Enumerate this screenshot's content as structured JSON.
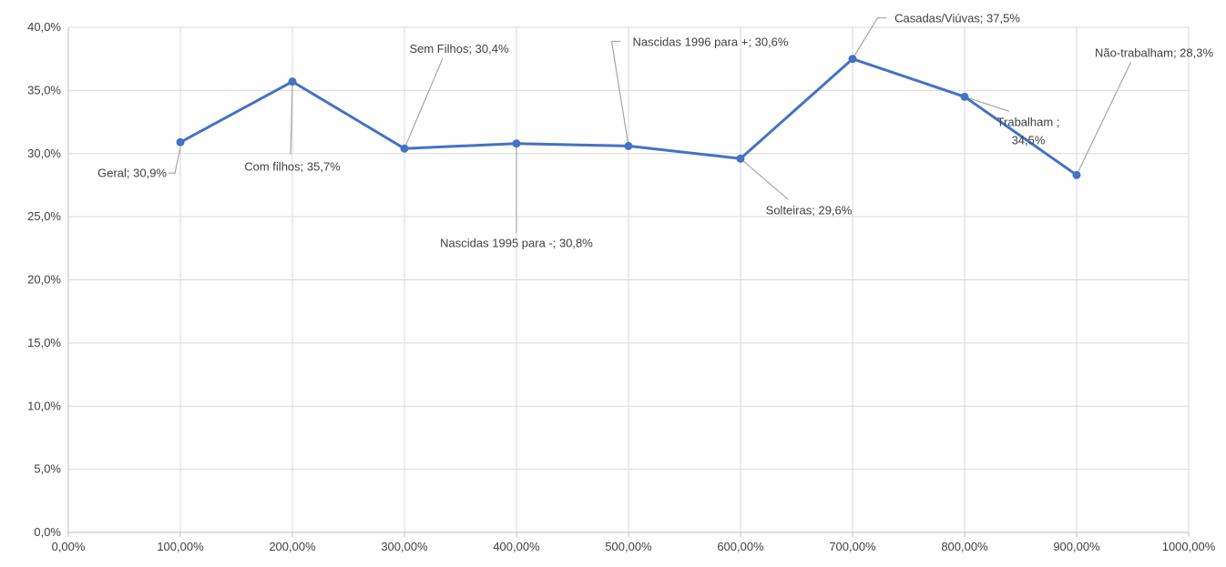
{
  "chart_data": {
    "type": "scatter",
    "title": "",
    "xlabel": "",
    "ylabel": "",
    "xlim": [
      0,
      10
    ],
    "ylim": [
      0,
      0.4
    ],
    "x_ticks": [
      0,
      1,
      2,
      3,
      4,
      5,
      6,
      7,
      8,
      9,
      10
    ],
    "x_tick_labels": [
      "0,00%",
      "100,00%",
      "200,00%",
      "300,00%",
      "400,00%",
      "500,00%",
      "600,00%",
      "700,00%",
      "800,00%",
      "900,00%",
      "1000,00%"
    ],
    "y_ticks": [
      0,
      0.05,
      0.1,
      0.15,
      0.2,
      0.25,
      0.3,
      0.35,
      0.4
    ],
    "y_tick_labels": [
      "0,0%",
      "5,0%",
      "10,0%",
      "15,0%",
      "20,0%",
      "25,0%",
      "30,0%",
      "35,0%",
      "40,0%"
    ],
    "grid": true,
    "legend": "none",
    "line_color": "#4472C4",
    "series": [
      {
        "x": [
          1,
          2,
          3,
          4,
          5,
          6,
          7,
          8,
          9
        ],
        "y": [
          0.309,
          0.357,
          0.304,
          0.308,
          0.306,
          0.296,
          0.375,
          0.345,
          0.283
        ],
        "labels": [
          [
            "Geral; 30,9%"
          ],
          [
            "Com filhos; 35,7%"
          ],
          [
            "Sem Filhos; 30,4%"
          ],
          [
            "Nascidas 1995 para -; 30,8%"
          ],
          [
            "Nascidas 1996 para +; 30,6%"
          ],
          [
            "Solteiras; 29,6%"
          ],
          [
            "Casadas/Viúvas; 37,5%"
          ],
          [
            "Trabalham ;",
            "34,5%"
          ],
          [
            "Não-trabalham; 28,3%"
          ]
        ]
      }
    ]
  }
}
